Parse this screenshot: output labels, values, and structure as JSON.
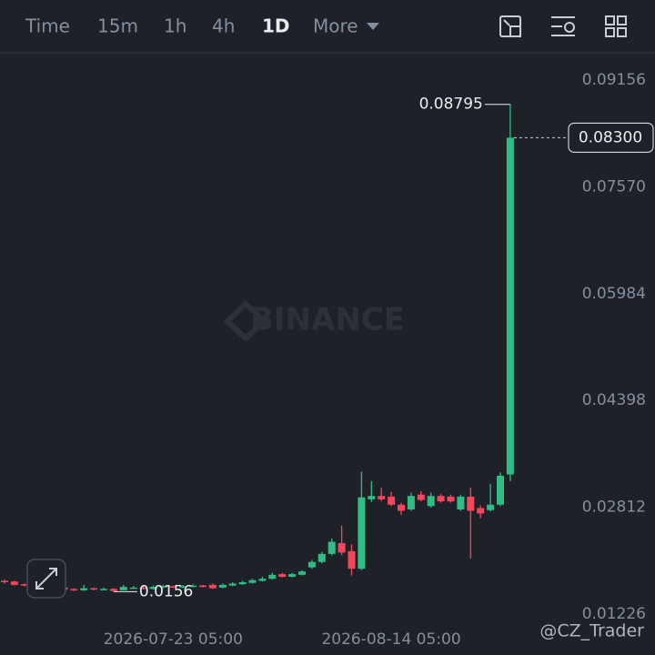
{
  "toolbar": {
    "tabs": [
      "Time",
      "15m",
      "1h",
      "4h",
      "1D",
      "More"
    ],
    "active_tab": 4
  },
  "watermarks": [
    "BINANCE",
    "@CZ_Trader"
  ],
  "chart_data": {
    "type": "candlestick",
    "categories": [
      null,
      null,
      null,
      null,
      null,
      null,
      null,
      null,
      null,
      null,
      null,
      null,
      null,
      null,
      null,
      null,
      null,
      "2026-07-23 05:00",
      null,
      null,
      null,
      null,
      null,
      null,
      null,
      null,
      null,
      null,
      null,
      null,
      null,
      null,
      null,
      null,
      null,
      null,
      null,
      null,
      null,
      "2026-08-14 05:00",
      null,
      null,
      null,
      null,
      null,
      null,
      null,
      null,
      null,
      null,
      null,
      null
    ],
    "open": [
      0.0172,
      0.0171,
      0.0167,
      0.0166,
      0.0163,
      0.0165,
      0.0162,
      0.016,
      0.0158,
      0.0161,
      0.0159,
      0.016,
      0.0158,
      0.0161,
      0.0162,
      0.016,
      0.0162,
      0.0164,
      0.0162,
      0.0163,
      0.0165,
      0.0166,
      0.0162,
      0.0165,
      0.0167,
      0.0169,
      0.0172,
      0.0175,
      0.0182,
      0.0178,
      0.0181,
      0.0192,
      0.02,
      0.0212,
      0.0228,
      0.0216,
      0.019,
      0.0293,
      0.0298,
      0.0297,
      0.0285,
      0.0278,
      0.03,
      0.0283,
      0.0298,
      0.0297,
      0.0278,
      0.0297,
      0.028,
      0.0277,
      0.0285,
      0.033
    ],
    "high": [
      0.0174,
      0.0172,
      0.0168,
      0.0167,
      0.0166,
      0.0166,
      0.0163,
      0.0161,
      0.0166,
      0.0162,
      0.0162,
      0.0161,
      0.0166,
      0.0164,
      0.0164,
      0.0165,
      0.0166,
      0.0165,
      0.0166,
      0.0167,
      0.0166,
      0.0168,
      0.0168,
      0.017,
      0.0172,
      0.0175,
      0.0178,
      0.0184,
      0.0184,
      0.0184,
      0.0188,
      0.0203,
      0.0215,
      0.0235,
      0.0254,
      0.0226,
      0.0334,
      0.032,
      0.031,
      0.0304,
      0.0288,
      0.0303,
      0.0305,
      0.0303,
      0.0301,
      0.03,
      0.03,
      0.031,
      0.0284,
      0.0316,
      0.0333,
      0.08795
    ],
    "low": [
      0.0168,
      0.0165,
      0.0164,
      0.0162,
      0.0162,
      0.0161,
      0.0158,
      0.0157,
      0.0157,
      0.0158,
      0.0158,
      0.0156,
      0.01587,
      0.016,
      0.0159,
      0.0159,
      0.0161,
      0.0161,
      0.0161,
      0.0162,
      0.0162,
      0.016,
      0.0161,
      0.0164,
      0.0166,
      0.0168,
      0.0171,
      0.0174,
      0.0177,
      0.0177,
      0.018,
      0.019,
      0.0198,
      0.021,
      0.021,
      0.018,
      0.0188,
      0.0289,
      0.029,
      0.0283,
      0.027,
      0.0276,
      0.029,
      0.0281,
      0.0288,
      0.0288,
      0.0276,
      0.0205,
      0.0265,
      0.0275,
      0.0283,
      0.032
    ],
    "close": [
      0.017,
      0.0166,
      0.0165,
      0.0163,
      0.0165,
      0.0162,
      0.0159,
      0.0158,
      0.0161,
      0.0159,
      0.016,
      0.0157,
      0.0163,
      0.0162,
      0.016,
      0.0163,
      0.0164,
      0.0162,
      0.0164,
      0.0165,
      0.0163,
      0.0161,
      0.0166,
      0.0168,
      0.017,
      0.0173,
      0.0175,
      0.0181,
      0.0178,
      0.0182,
      0.0186,
      0.02,
      0.0212,
      0.023,
      0.0214,
      0.019,
      0.0296,
      0.0298,
      0.0293,
      0.0285,
      0.0276,
      0.0298,
      0.0292,
      0.0298,
      0.029,
      0.029,
      0.0297,
      0.0276,
      0.0272,
      0.0285,
      0.0328,
      0.083
    ],
    "last_price": {
      "value": 0.083,
      "label": "0.08300"
    },
    "up_color": "#2ebd85",
    "down_color": "#f6465d",
    "ylim": [
      0.01024,
      0.09561
    ],
    "yticks": [
      0.09156,
      {
        "value": 0.0757,
        "label": "0.07570"
      },
      0.05984,
      0.04398,
      0.02812,
      0.01226
    ],
    "grid": false
  }
}
